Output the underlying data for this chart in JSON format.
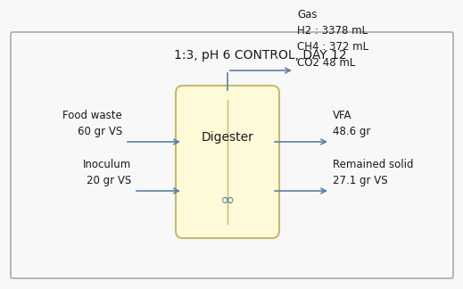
{
  "title": "1:3, pH 6 CONTROL, DAY 12",
  "digester_label": "Digester",
  "digester_fill": "#fef9d7",
  "digester_edge": "#c8b870",
  "infinity_symbol": "∞",
  "arrow_color": "#5b7fa6",
  "text_color": "#1a1a1a",
  "bg_color": "#f8f8f8",
  "border_color": "#aaaaaa",
  "title_fontsize": 10,
  "label_fontsize": 8.5,
  "digester_fontsize": 10,
  "gas_text": "Gas\nH2 : 3378 mL\nCH4 : 372 mL\nCO2 48 mL",
  "vfa_text": "VFA\n48.6 gr",
  "solid_text": "Remained solid\n27.1 gr VS",
  "food_text": "Food waste\n60 gr VS",
  "inoculum_text": "Inoculum\n20 gr VS"
}
